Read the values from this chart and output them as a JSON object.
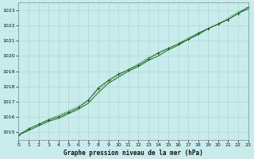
{
  "xlabel": "Graphe pression niveau de la mer (hPa)",
  "ylim": [
    1014.5,
    1023.5
  ],
  "xlim": [
    0,
    23
  ],
  "yticks": [
    1015,
    1016,
    1017,
    1018,
    1019,
    1020,
    1021,
    1022,
    1023
  ],
  "xticks": [
    0,
    1,
    2,
    3,
    4,
    5,
    6,
    7,
    8,
    9,
    10,
    11,
    12,
    13,
    14,
    15,
    16,
    17,
    18,
    19,
    20,
    21,
    22,
    23
  ],
  "background_color": "#c8ecec",
  "grid_color": "#b0d0d0",
  "line_color": "#1a6b1a",
  "series1": [
    1014.8,
    1015.1,
    1015.4,
    1015.7,
    1015.9,
    1016.2,
    1016.5,
    1016.9,
    1017.6,
    1018.2,
    1018.6,
    1019.0,
    1019.3,
    1019.7,
    1020.0,
    1020.4,
    1020.7,
    1021.1,
    1021.4,
    1021.8,
    1022.1,
    1022.4,
    1022.8,
    1023.1
  ],
  "series2": [
    1014.8,
    1015.2,
    1015.5,
    1015.8,
    1016.0,
    1016.3,
    1016.6,
    1017.1,
    1017.9,
    1018.4,
    1018.8,
    1019.1,
    1019.4,
    1019.8,
    1020.2,
    1020.5,
    1020.8,
    1021.1,
    1021.5,
    1021.8,
    1022.1,
    1022.4,
    1022.8,
    1023.2
  ],
  "series3": [
    1014.8,
    1015.2,
    1015.5,
    1015.8,
    1016.1,
    1016.4,
    1016.7,
    1017.1,
    1017.8,
    1018.3,
    1018.7,
    1019.1,
    1019.5,
    1019.9,
    1020.2,
    1020.5,
    1020.8,
    1021.2,
    1021.5,
    1021.8,
    1022.1,
    1022.5,
    1022.9,
    1023.2
  ]
}
